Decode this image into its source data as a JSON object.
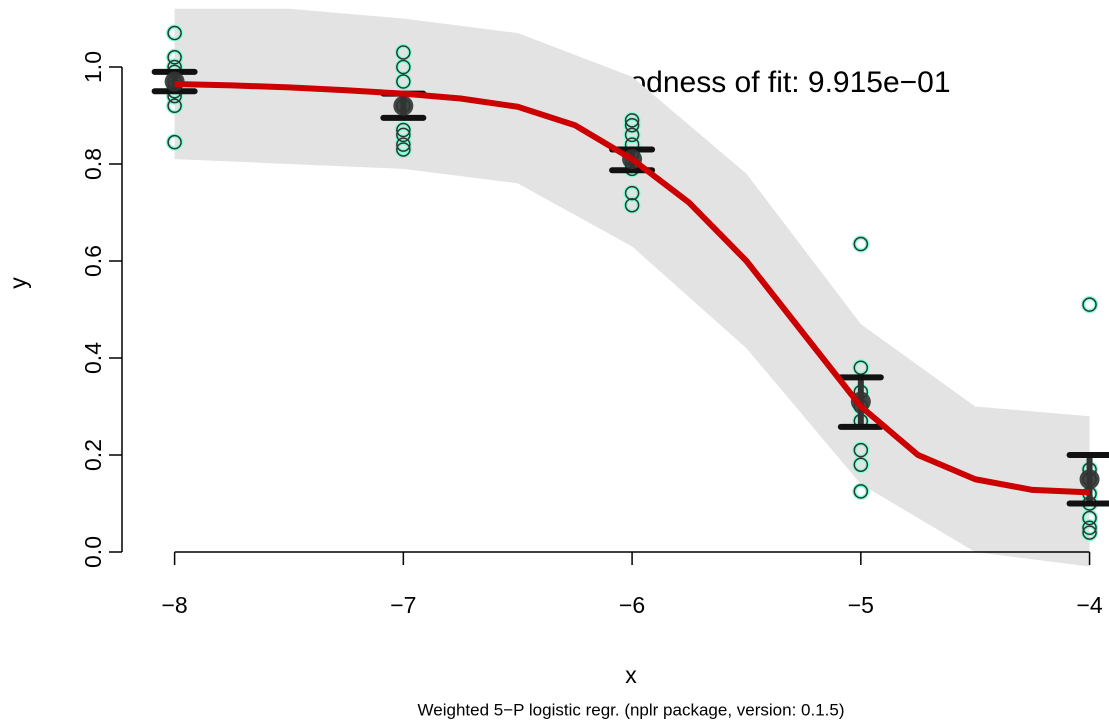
{
  "chart_data": {
    "type": "logistic-fit",
    "annotation": "Goodness of fit: 9.915e−01",
    "x_label": "x",
    "y_label": "y",
    "caption": "Weighted 5−P logistic regr. (nplr package, version: 0.1.5)",
    "xlim": [
      -8.23,
      -3.95
    ],
    "ylim": [
      -0.04,
      1.1
    ],
    "xticks": [
      {
        "value": -8,
        "label": "−8"
      },
      {
        "value": -7,
        "label": "−7"
      },
      {
        "value": -6,
        "label": "−6"
      },
      {
        "value": -5,
        "label": "−5"
      },
      {
        "value": -4,
        "label": "−4"
      }
    ],
    "yticks": [
      {
        "value": 0,
        "label": "0.0"
      },
      0.2,
      0.4,
      0.6,
      0.8,
      {
        "value": 1,
        "label": "1.0"
      }
    ],
    "band": {
      "color": "#e3e3e3",
      "x": [
        -8,
        -7.5,
        -7,
        -6.5,
        -6,
        -5.5,
        -5,
        -4.5,
        -4
      ],
      "upper": [
        1.12,
        1.12,
        1.1,
        1.07,
        0.98,
        0.78,
        0.47,
        0.3,
        0.28
      ],
      "lower": [
        0.81,
        0.8,
        0.79,
        0.76,
        0.63,
        0.42,
        0.14,
        0.0,
        -0.03
      ]
    },
    "points": {
      "color": "#7fffd4",
      "x": [
        -8,
        -8,
        -8,
        -8,
        -8,
        -8,
        -8,
        -8,
        -8,
        -8,
        -7,
        -7,
        -7,
        -7,
        -7,
        -7,
        -7,
        -7,
        -6,
        -6,
        -6,
        -6,
        -6,
        -6,
        -6,
        -6,
        -6,
        -5,
        -5,
        -5,
        -5,
        -5,
        -5,
        -5,
        -5,
        -4,
        -4,
        -4,
        -4,
        -4,
        -4,
        -4,
        -4
      ],
      "y": [
        1.07,
        1.02,
        1.0,
        0.99,
        0.97,
        0.96,
        0.95,
        0.94,
        0.92,
        0.845,
        1.03,
        1.0,
        0.97,
        0.92,
        0.87,
        0.86,
        0.84,
        0.83,
        0.89,
        0.88,
        0.86,
        0.84,
        0.82,
        0.8,
        0.79,
        0.74,
        0.715,
        0.635,
        0.38,
        0.33,
        0.3,
        0.27,
        0.21,
        0.18,
        0.125,
        0.51,
        0.17,
        0.15,
        0.12,
        0.1,
        0.07,
        0.05,
        0.04
      ]
    },
    "means": {
      "color": "#333333",
      "x": [
        -8,
        -7,
        -6,
        -5,
        -4
      ],
      "y": [
        0.97,
        0.92,
        0.81,
        0.31,
        0.15
      ],
      "lower": [
        0.95,
        0.895,
        0.787,
        0.258,
        0.1
      ],
      "upper": [
        0.99,
        0.945,
        0.83,
        0.36,
        0.2
      ]
    },
    "curve": {
      "color": "#cc0000",
      "x": [
        -8,
        -7.75,
        -7.5,
        -7.25,
        -7,
        -6.75,
        -6.5,
        -6.25,
        -6,
        -5.75,
        -5.5,
        -5.25,
        -5,
        -4.75,
        -4.5,
        -4.25,
        -4
      ],
      "y": [
        0.965,
        0.962,
        0.958,
        0.952,
        0.945,
        0.935,
        0.918,
        0.88,
        0.81,
        0.72,
        0.6,
        0.45,
        0.3,
        0.2,
        0.15,
        0.128,
        0.123
      ]
    }
  }
}
